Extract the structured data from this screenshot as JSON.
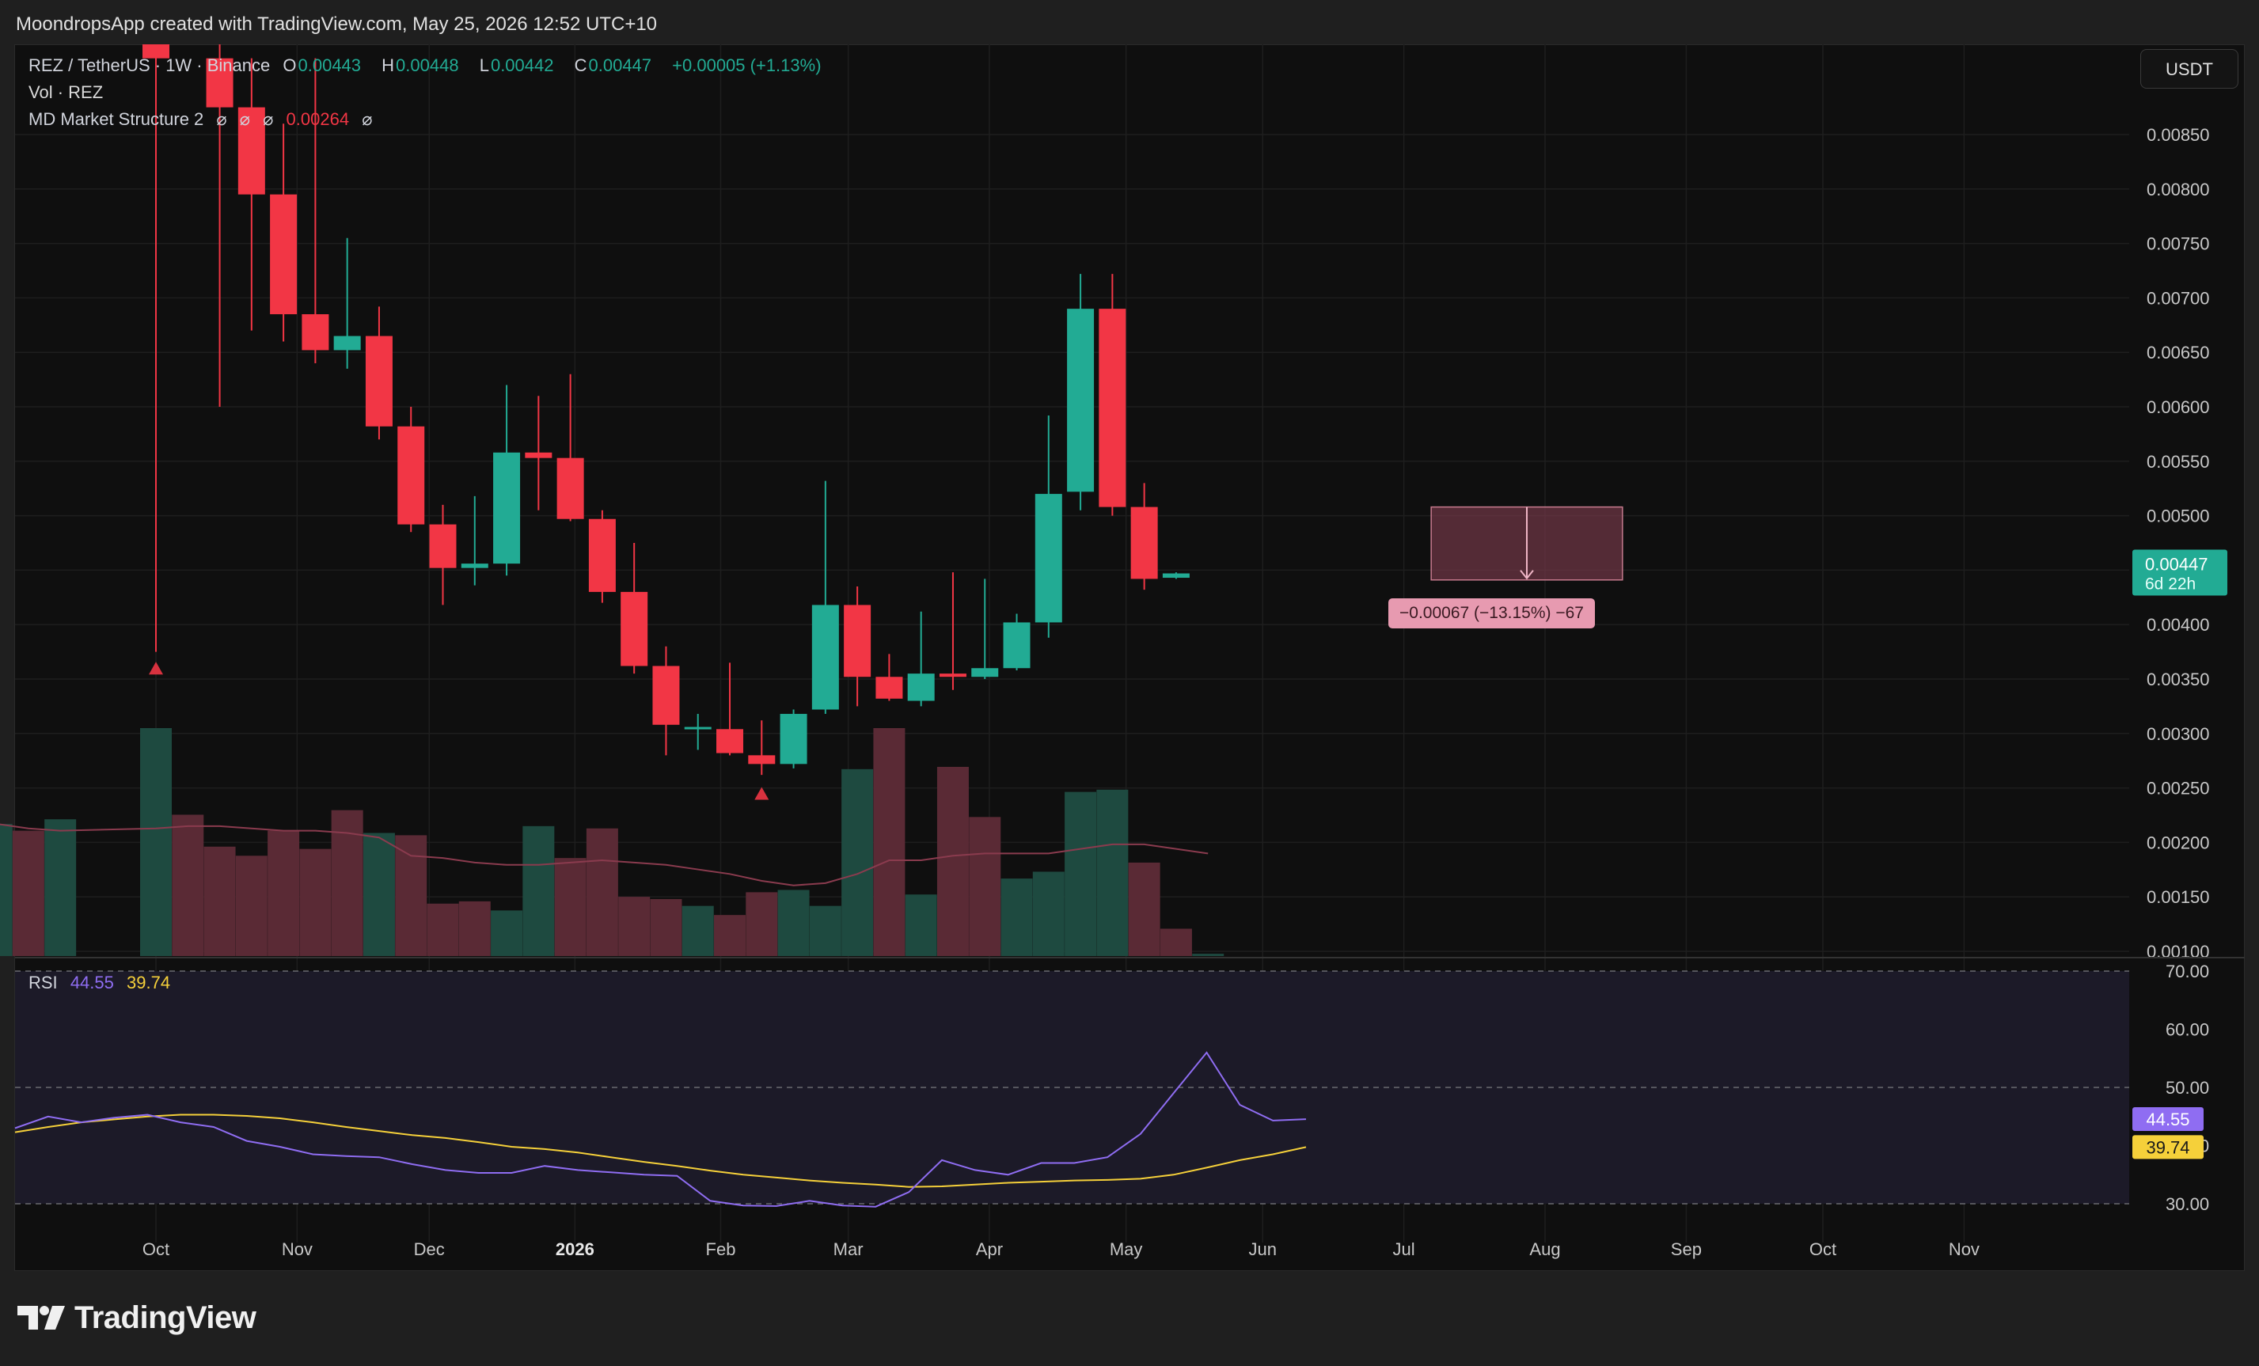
{
  "header": {
    "caption": "MoondropsApp created with TradingView.com, May 25, 2026 12:52 UTC+10"
  },
  "legend": {
    "symbol": "REZ / TetherUS · 1W · Binance",
    "o_label": "O",
    "o_value": "0.00443",
    "h_label": "H",
    "h_value": "0.00448",
    "l_label": "L",
    "l_value": "0.00442",
    "c_label": "C",
    "c_value": "0.00447",
    "change": "+0.00005 (+1.13%)",
    "volume_label": "Vol · REZ",
    "indicator_name": "MD Market Structure 2",
    "indicator_glyph": "⌀",
    "indicator_value": "0.00264"
  },
  "currency_button": "USDT",
  "price_tag": {
    "value": "0.00447",
    "countdown": "6d 22h"
  },
  "measure": {
    "label": "−0.00067 (−13.15%) −67"
  },
  "rsi": {
    "label": "RSI",
    "value": "44.55",
    "ma_value": "39.74",
    "tag_value": "44.55",
    "tag_ma": "39.74"
  },
  "brand": {
    "name": "TradingView"
  },
  "colors": {
    "up": "#22ab94",
    "down": "#f23645",
    "rsi_line": "#8f6df2",
    "rsi_ma": "#f5d03a",
    "vol_up": "#1e4a40",
    "vol_down": "#5a2a35",
    "vol_ma": "#8a3b4e",
    "measure_fill": "#7a3a4c",
    "measure_label": "#e79ab0"
  },
  "chart_data": {
    "type": "candlestick",
    "symbol": "REZ / TetherUS",
    "interval": "1W",
    "price_axis": {
      "ylim": [
        0.001,
        0.0089
      ],
      "ticks": [
        "0.00100",
        "0.00150",
        "0.00200",
        "0.00250",
        "0.00300",
        "0.00350",
        "0.00400",
        "0.00450",
        "0.00500",
        "0.00550",
        "0.00600",
        "0.00650",
        "0.00700",
        "0.00750",
        "0.00800",
        "0.00850"
      ]
    },
    "time_axis": {
      "labels": [
        "Oct",
        "Nov",
        "Dec",
        "2026",
        "Feb",
        "Mar",
        "Apr",
        "May",
        "Jun",
        "Jul",
        "Aug",
        "Sep",
        "Oct",
        "Nov"
      ],
      "bold": [
        "2026"
      ]
    },
    "candles": [
      {
        "t": "2025-09-29",
        "o": 0.0097,
        "h": 0.014,
        "l": 0.00375,
        "c": 0.0092
      },
      {
        "t": "2025-10-13",
        "o": 0.0092,
        "h": 0.0095,
        "l": 0.006,
        "c": 0.00875
      },
      {
        "t": "2025-10-20",
        "o": 0.00875,
        "h": 0.0092,
        "l": 0.0067,
        "c": 0.00795
      },
      {
        "t": "2025-10-27",
        "o": 0.00795,
        "h": 0.0086,
        "l": 0.0066,
        "c": 0.00685
      },
      {
        "t": "2025-11-03",
        "o": 0.00685,
        "h": 0.0092,
        "l": 0.0064,
        "c": 0.00652
      },
      {
        "t": "2025-11-10",
        "o": 0.00652,
        "h": 0.00755,
        "l": 0.00635,
        "c": 0.00665
      },
      {
        "t": "2025-11-17",
        "o": 0.00665,
        "h": 0.00692,
        "l": 0.0057,
        "c": 0.00582
      },
      {
        "t": "2025-11-24",
        "o": 0.00582,
        "h": 0.006,
        "l": 0.00485,
        "c": 0.00492
      },
      {
        "t": "2025-12-01",
        "o": 0.00492,
        "h": 0.0051,
        "l": 0.00418,
        "c": 0.00452
      },
      {
        "t": "2025-12-08",
        "o": 0.00452,
        "h": 0.00518,
        "l": 0.00436,
        "c": 0.00456
      },
      {
        "t": "2025-12-15",
        "o": 0.00456,
        "h": 0.0062,
        "l": 0.00445,
        "c": 0.00558
      },
      {
        "t": "2025-12-22",
        "o": 0.00558,
        "h": 0.0061,
        "l": 0.00505,
        "c": 0.00553
      },
      {
        "t": "2025-12-29",
        "o": 0.00553,
        "h": 0.0063,
        "l": 0.00495,
        "c": 0.00497
      },
      {
        "t": "2026-01-05",
        "o": 0.00497,
        "h": 0.00505,
        "l": 0.0042,
        "c": 0.0043
      },
      {
        "t": "2026-01-12",
        "o": 0.0043,
        "h": 0.00475,
        "l": 0.00355,
        "c": 0.00362
      },
      {
        "t": "2026-01-19",
        "o": 0.00362,
        "h": 0.0038,
        "l": 0.0028,
        "c": 0.00308
      },
      {
        "t": "2026-01-26",
        "o": 0.00305,
        "h": 0.00318,
        "l": 0.00285,
        "c": 0.00306
      },
      {
        "t": "2026-02-02",
        "o": 0.00304,
        "h": 0.00365,
        "l": 0.0028,
        "c": 0.00282
      },
      {
        "t": "2026-02-09",
        "o": 0.0028,
        "h": 0.00312,
        "l": 0.00262,
        "c": 0.00272
      },
      {
        "t": "2026-02-16",
        "o": 0.00272,
        "h": 0.00322,
        "l": 0.00268,
        "c": 0.00318
      },
      {
        "t": "2026-02-23",
        "o": 0.00322,
        "h": 0.00532,
        "l": 0.00318,
        "c": 0.00418
      },
      {
        "t": "2026-03-02",
        "o": 0.00418,
        "h": 0.00435,
        "l": 0.00325,
        "c": 0.00352
      },
      {
        "t": "2026-03-09",
        "o": 0.00352,
        "h": 0.00373,
        "l": 0.0033,
        "c": 0.00332
      },
      {
        "t": "2026-03-16",
        "o": 0.0033,
        "h": 0.00412,
        "l": 0.00325,
        "c": 0.00355
      },
      {
        "t": "2026-03-23",
        "o": 0.00355,
        "h": 0.00448,
        "l": 0.0034,
        "c": 0.00352
      },
      {
        "t": "2026-03-30",
        "o": 0.00352,
        "h": 0.00442,
        "l": 0.0035,
        "c": 0.0036
      },
      {
        "t": "2026-04-06",
        "o": 0.0036,
        "h": 0.0041,
        "l": 0.00358,
        "c": 0.00402
      },
      {
        "t": "2026-04-13",
        "o": 0.00402,
        "h": 0.00592,
        "l": 0.00388,
        "c": 0.0052
      },
      {
        "t": "2026-04-20",
        "o": 0.00522,
        "h": 0.00722,
        "l": 0.00505,
        "c": 0.0069
      },
      {
        "t": "2026-04-27",
        "o": 0.0069,
        "h": 0.00722,
        "l": 0.005,
        "c": 0.00508
      },
      {
        "t": "2026-05-04",
        "o": 0.00508,
        "h": 0.0053,
        "l": 0.00432,
        "c": 0.00442
      },
      {
        "t": "2026-05-11",
        "o": 0.00443,
        "h": 0.00448,
        "l": 0.00442,
        "c": 0.00447
      }
    ],
    "volume": [
      {
        "t": "2025-08-18",
        "dir": "up",
        "v": 0.22
      },
      {
        "t": "2025-08-25",
        "dir": "up",
        "v": 0.58
      },
      {
        "t": "2025-09-01",
        "dir": "down",
        "v": 0.55
      },
      {
        "t": "2025-09-08",
        "dir": "up",
        "v": 0.6
      },
      {
        "t": "2025-09-29",
        "dir": "up",
        "v": 1.0
      },
      {
        "t": "2025-10-06",
        "dir": "down",
        "v": 0.62
      },
      {
        "t": "2025-10-13",
        "dir": "down",
        "v": 0.48
      },
      {
        "t": "2025-10-20",
        "dir": "down",
        "v": 0.44
      },
      {
        "t": "2025-10-27",
        "dir": "down",
        "v": 0.55
      },
      {
        "t": "2025-11-03",
        "dir": "down",
        "v": 0.47
      },
      {
        "t": "2025-11-10",
        "dir": "down",
        "v": 0.64
      },
      {
        "t": "2025-11-17",
        "dir": "up",
        "v": 0.54
      },
      {
        "t": "2025-11-24",
        "dir": "down",
        "v": 0.53
      },
      {
        "t": "2025-12-01",
        "dir": "down",
        "v": 0.23
      },
      {
        "t": "2025-12-08",
        "dir": "down",
        "v": 0.24
      },
      {
        "t": "2025-12-15",
        "dir": "up",
        "v": 0.2
      },
      {
        "t": "2025-12-22",
        "dir": "up",
        "v": 0.57
      },
      {
        "t": "2025-12-29",
        "dir": "down",
        "v": 0.43
      },
      {
        "t": "2026-01-05",
        "dir": "down",
        "v": 0.56
      },
      {
        "t": "2026-01-12",
        "dir": "down",
        "v": 0.26
      },
      {
        "t": "2026-01-19",
        "dir": "down",
        "v": 0.25
      },
      {
        "t": "2026-01-26",
        "dir": "up",
        "v": 0.22
      },
      {
        "t": "2026-02-02",
        "dir": "down",
        "v": 0.18
      },
      {
        "t": "2026-02-09",
        "dir": "down",
        "v": 0.28
      },
      {
        "t": "2026-02-16",
        "dir": "up",
        "v": 0.29
      },
      {
        "t": "2026-02-23",
        "dir": "up",
        "v": 0.22
      },
      {
        "t": "2026-03-02",
        "dir": "up",
        "v": 0.82
      },
      {
        "t": "2026-03-09",
        "dir": "down",
        "v": 1.0
      },
      {
        "t": "2026-03-16",
        "dir": "up",
        "v": 0.27
      },
      {
        "t": "2026-03-23",
        "dir": "down",
        "v": 0.83
      },
      {
        "t": "2026-03-30",
        "dir": "down",
        "v": 0.61
      },
      {
        "t": "2026-04-06",
        "dir": "up",
        "v": 0.34
      },
      {
        "t": "2026-04-13",
        "dir": "up",
        "v": 0.37
      },
      {
        "t": "2026-04-20",
        "dir": "up",
        "v": 0.72
      },
      {
        "t": "2026-04-27",
        "dir": "up",
        "v": 0.73
      },
      {
        "t": "2026-05-04",
        "dir": "down",
        "v": 0.41
      },
      {
        "t": "2026-05-11",
        "dir": "down",
        "v": 0.12
      },
      {
        "t": "2026-05-18",
        "dir": "up",
        "v": 0.01
      }
    ],
    "volume_ma": [
      0.62,
      0.58,
      0.56,
      0.55,
      0.56,
      0.57,
      0.57,
      0.56,
      0.55,
      0.55,
      0.54,
      0.52,
      0.44,
      0.43,
      0.41,
      0.4,
      0.4,
      0.41,
      0.42,
      0.41,
      0.4,
      0.38,
      0.36,
      0.33,
      0.31,
      0.32,
      0.36,
      0.42,
      0.42,
      0.44,
      0.45,
      0.45,
      0.45,
      0.47,
      0.49,
      0.49,
      0.47,
      0.45
    ],
    "signals": [
      {
        "t": "2025-09-29",
        "price": 0.0036,
        "type": "triangle-up"
      },
      {
        "t": "2026-02-09",
        "price": 0.00245,
        "type": "triangle-up"
      }
    ],
    "measurement": {
      "from_price": 0.00508,
      "to_price": 0.00441,
      "start": "2026-07-06",
      "end": "2026-08-17"
    },
    "rsi": {
      "ylim": [
        27,
        72
      ],
      "ticks": [
        "30.00",
        "40.00",
        "50.00",
        "60.00",
        "70.00"
      ],
      "bands": [
        30,
        50,
        70
      ],
      "rsi_values": [
        43.0,
        45.0,
        44.0,
        44.8,
        45.3,
        44.0,
        43.2,
        40.8,
        39.8,
        38.5,
        38.2,
        38.0,
        36.8,
        35.8,
        35.3,
        35.3,
        36.5,
        35.8,
        35.4,
        35.0,
        34.8,
        30.5,
        29.7,
        29.6,
        30.5,
        29.7,
        29.5,
        32.0,
        37.5,
        35.8,
        35.0,
        37.0,
        37.0,
        38.0,
        42.0,
        49.0,
        56.0,
        47.0,
        44.3,
        44.55
      ],
      "ma_values": [
        42.3,
        43.2,
        44.0,
        44.5,
        45.0,
        45.3,
        45.3,
        45.1,
        44.7,
        44.0,
        43.2,
        42.5,
        41.8,
        41.3,
        40.6,
        39.8,
        39.4,
        38.8,
        38.0,
        37.2,
        36.5,
        35.7,
        35.0,
        34.5,
        34.0,
        33.6,
        33.3,
        32.9,
        33.0,
        33.3,
        33.6,
        33.8,
        34.0,
        34.1,
        34.3,
        35.0,
        36.2,
        37.5,
        38.5,
        39.74
      ]
    }
  }
}
